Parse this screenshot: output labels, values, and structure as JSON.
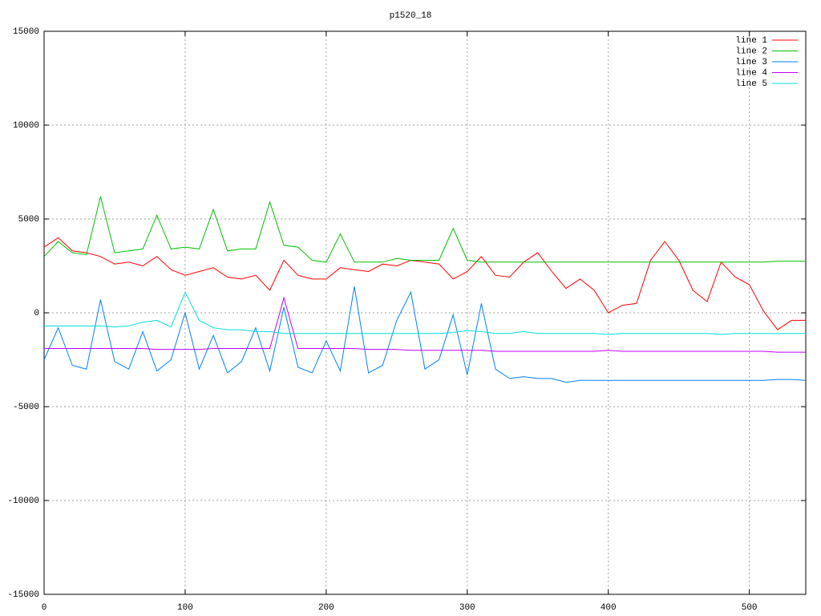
{
  "chart_data": {
    "type": "line",
    "title": "p1520_18",
    "x": [
      0,
      10,
      20,
      30,
      40,
      50,
      60,
      70,
      80,
      90,
      100,
      110,
      120,
      130,
      140,
      150,
      160,
      170,
      180,
      190,
      200,
      210,
      220,
      230,
      240,
      250,
      260,
      270,
      280,
      290,
      300,
      310,
      320,
      330,
      340,
      350,
      360,
      370,
      380,
      390,
      400,
      410,
      420,
      430,
      440,
      450,
      460,
      470,
      480,
      490,
      500,
      510,
      520,
      530,
      540
    ],
    "series": [
      {
        "name": "line 1",
        "color": "#ff0000",
        "values": [
          3500,
          4000,
          3300,
          3200,
          3000,
          2600,
          2700,
          2500,
          3000,
          2300,
          2000,
          2200,
          2400,
          1900,
          1800,
          2000,
          1200,
          2800,
          2000,
          1800,
          1800,
          2400,
          2300,
          2200,
          2600,
          2500,
          2800,
          2700,
          2600,
          1800,
          2200,
          3000,
          2000,
          1900,
          2700,
          3200,
          2200,
          1300,
          1800,
          1200,
          0,
          400,
          500,
          2800,
          3800,
          2800,
          1200,
          600,
          2700,
          1900,
          1500,
          100,
          -900,
          -400,
          -400
        ]
      },
      {
        "name": "line 2",
        "color": "#00c000",
        "values": [
          3000,
          3800,
          3200,
          3100,
          6200,
          3200,
          3300,
          3400,
          5200,
          3400,
          3500,
          3400,
          5500,
          3300,
          3400,
          3400,
          5900,
          3600,
          3500,
          2800,
          2700,
          4200,
          2700,
          2700,
          2700,
          2900,
          2800,
          2800,
          2800,
          4500,
          2800,
          2700,
          2700,
          2700,
          2700,
          2700,
          2700,
          2700,
          2700,
          2700,
          2700,
          2700,
          2700,
          2700,
          2700,
          2700,
          2700,
          2700,
          2700,
          2700,
          2700,
          2700,
          2750,
          2750,
          2750
        ]
      },
      {
        "name": "line 3",
        "color": "#0080ff",
        "values": [
          -2500,
          -800,
          -2800,
          -3000,
          700,
          -2600,
          -3000,
          -1000,
          -3100,
          -2500,
          0,
          -3000,
          -1200,
          -3200,
          -2600,
          -800,
          -3100,
          300,
          -2900,
          -3200,
          -1500,
          -3100,
          1400,
          -3200,
          -2800,
          -400,
          1100,
          -3000,
          -2500,
          -100,
          -3300,
          500,
          -3000,
          -3500,
          -3400,
          -3500,
          -3500,
          -3700,
          -3600,
          -3600,
          -3600,
          -3600,
          -3600,
          -3600,
          -3600,
          -3600,
          -3600,
          -3600,
          -3600,
          -3600,
          -3600,
          -3600,
          -3550,
          -3550,
          -3600
        ]
      },
      {
        "name": "line 4",
        "color": "#c000ff",
        "values": [
          -1900,
          -1900,
          -1900,
          -1900,
          -1900,
          -1900,
          -1900,
          -1900,
          -1950,
          -1950,
          -1950,
          -1950,
          -1900,
          -1900,
          -1900,
          -1900,
          -1900,
          800,
          -1900,
          -1900,
          -1900,
          -1900,
          -1900,
          -1950,
          -1950,
          -1950,
          -2000,
          -2000,
          -2000,
          -2000,
          -2000,
          -2000,
          -2050,
          -2050,
          -2050,
          -2050,
          -2050,
          -2050,
          -2050,
          -2050,
          -2000,
          -2050,
          -2050,
          -2050,
          -2050,
          -2050,
          -2050,
          -2050,
          -2050,
          -2050,
          -2050,
          -2050,
          -2100,
          -2100,
          -2100
        ]
      },
      {
        "name": "line 5",
        "color": "#00dddd",
        "values": [
          -700,
          -700,
          -700,
          -700,
          -700,
          -750,
          -700,
          -500,
          -400,
          -750,
          1100,
          -400,
          -800,
          -900,
          -900,
          -1000,
          -1000,
          -1100,
          -1100,
          -1100,
          -1100,
          -1100,
          -1100,
          -1100,
          -1100,
          -1100,
          -1100,
          -1100,
          -1100,
          -1050,
          -950,
          -1000,
          -1100,
          -1100,
          -1000,
          -1100,
          -1100,
          -1100,
          -1100,
          -1100,
          -1150,
          -1100,
          -1100,
          -1100,
          -1100,
          -1100,
          -1100,
          -1100,
          -1150,
          -1100,
          -1100,
          -1100,
          -1100,
          -1100,
          -1100
        ]
      }
    ],
    "xlim": [
      0,
      540
    ],
    "xticks": [
      0,
      100,
      200,
      300,
      400,
      500
    ],
    "ylim": [
      -15000,
      15000
    ],
    "yticks": [
      -15000,
      -10000,
      -5000,
      0,
      5000,
      10000,
      15000
    ],
    "grid": true,
    "legend": "top-right"
  }
}
